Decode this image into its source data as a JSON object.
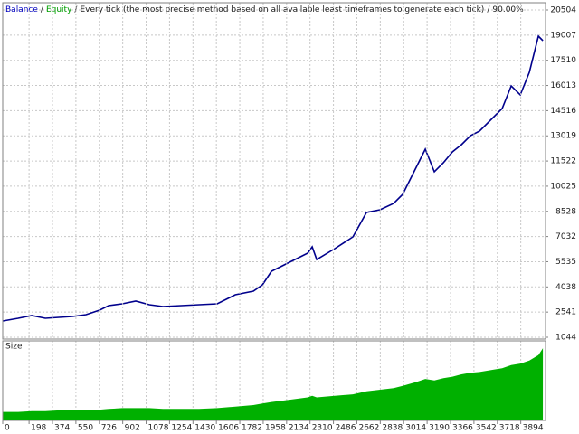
{
  "chart_data": [
    {
      "type": "line",
      "title_parts": [
        "Balance",
        "Equity",
        "Every tick (the most precise method based on all available least timeframes to generate each tick)",
        "90.00%"
      ],
      "title_colors": [
        "#0000c0",
        "#00a000",
        "#202020",
        "#202020"
      ],
      "separator": "/",
      "x": [
        0,
        116,
        218,
        320,
        422,
        524,
        626,
        728,
        796,
        898,
        1000,
        1102,
        1204,
        1340,
        1476,
        1612,
        1748,
        1884,
        1952,
        2020,
        2156,
        2292,
        2326,
        2360,
        2496,
        2632,
        2734,
        2836,
        2938,
        3006,
        3108,
        3176,
        3244,
        3312,
        3380,
        3448,
        3516,
        3584,
        3686,
        3754,
        3822,
        3890,
        3958,
        4026,
        4060
      ],
      "series": [
        {
          "name": "Balance",
          "color": "#00008c",
          "values": [
            2012,
            2173,
            2334,
            2173,
            2227,
            2280,
            2388,
            2657,
            2926,
            3033,
            3194,
            2979,
            2872,
            2926,
            2979,
            3033,
            3571,
            3786,
            4162,
            4968,
            5506,
            6044,
            6420,
            5667,
            6312,
            7011,
            8463,
            8624,
            9000,
            9538,
            11151,
            12226,
            10882,
            11420,
            12065,
            12495,
            13032,
            13301,
            14108,
            14645,
            15989,
            15451,
            16796,
            18946,
            18677
          ]
        }
      ],
      "xlim": [
        0,
        4080
      ],
      "ylim": [
        1044,
        20504
      ],
      "yticks": [
        20504,
        19007,
        17510,
        16013,
        14516,
        13019,
        11522,
        10025,
        8528,
        7032,
        5535,
        4038,
        2541,
        1044
      ],
      "grid": true
    },
    {
      "type": "area",
      "title": "Size",
      "color": "#00b000",
      "x": [
        0,
        116,
        218,
        320,
        422,
        524,
        626,
        728,
        796,
        898,
        1000,
        1102,
        1204,
        1340,
        1476,
        1612,
        1748,
        1884,
        1952,
        2020,
        2156,
        2292,
        2326,
        2360,
        2496,
        2632,
        2734,
        2836,
        2938,
        3006,
        3108,
        3176,
        3244,
        3312,
        3380,
        3448,
        3516,
        3584,
        3686,
        3754,
        3822,
        3890,
        3958,
        4026,
        4060
      ],
      "values": [
        11,
        11,
        12,
        12,
        13,
        13,
        14,
        14,
        15,
        16,
        16,
        16,
        15,
        15,
        15,
        16,
        18,
        20,
        22,
        24,
        27,
        30,
        32,
        30,
        32,
        34,
        38,
        40,
        42,
        45,
        50,
        54,
        52,
        55,
        57,
        60,
        62,
        63,
        66,
        68,
        72,
        74,
        78,
        85,
        94
      ],
      "xlim": [
        0,
        4080
      ],
      "ylim": [
        0,
        100
      ],
      "xticks": [
        0,
        198,
        374,
        550,
        726,
        902,
        1078,
        1254,
        1430,
        1606,
        1782,
        1958,
        2134,
        2310,
        2486,
        2662,
        2838,
        3014,
        3190,
        3366,
        3542,
        3718,
        3894
      ],
      "grid": true
    }
  ]
}
